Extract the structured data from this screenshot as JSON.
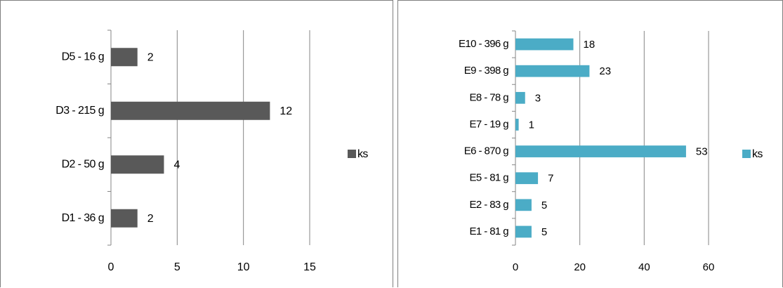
{
  "chart_data": [
    {
      "type": "bar",
      "orientation": "horizontal",
      "categories": [
        "D1 - 36 g",
        "D2 - 50 g",
        "D3 - 215 g",
        "D5 - 16 g"
      ],
      "series": [
        {
          "name": "ks",
          "values": [
            2,
            4,
            12,
            2
          ],
          "color": "#595959"
        }
      ],
      "xticks": [
        0,
        5,
        10,
        15
      ],
      "xlim": [
        0,
        15
      ],
      "grid": true,
      "legend": "right",
      "data_labels": true
    },
    {
      "type": "bar",
      "orientation": "horizontal",
      "categories": [
        "E1 - 81 g",
        "E2 - 83 g",
        "E5 - 81 g",
        "E6 - 870 g",
        "E7 - 19 g",
        "E8 - 78 g",
        "E9 - 398 g",
        "E10 - 396 g"
      ],
      "series": [
        {
          "name": "ks",
          "values": [
            5,
            5,
            7,
            53,
            1,
            3,
            23,
            18
          ],
          "color": "#4bacc6"
        }
      ],
      "xticks": [
        0,
        20,
        40,
        60
      ],
      "xlim": [
        0,
        60
      ],
      "grid": true,
      "legend": "right",
      "data_labels": true
    }
  ]
}
